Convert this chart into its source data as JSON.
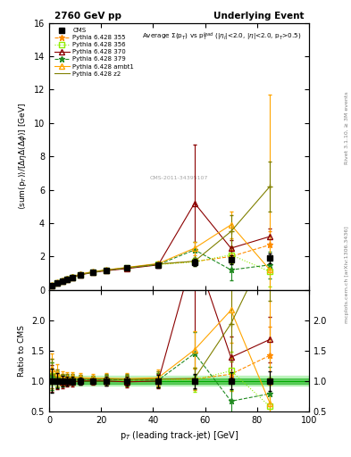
{
  "title_left": "2760 GeV pp",
  "title_right": "Underlying Event",
  "annotation": "Average Σ(p_{T}) vs p_{T}^{lead} (|η_{l}|<2.0, |η|<2.0, p_{T}>0.5)",
  "xlabel": "p_{T} (leading track-jet) [GeV]",
  "ylabel": "⟨sum(p_{T})⟩/[ΔηΔ(Δϕ)] [GeV]",
  "ylabel_ratio": "Ratio to CMS",
  "right_label": "mcplots.cern.ch [arXiv:1306.3436]",
  "rivet_label": "Rivet 3.1.10, ≥ 3M events",
  "ylim_main": [
    0,
    16
  ],
  "ylim_ratio": [
    0.5,
    2.5
  ],
  "yticks_main": [
    0,
    2,
    4,
    6,
    8,
    10,
    12,
    14,
    16
  ],
  "yticks_ratio": [
    0.5,
    1.0,
    1.5,
    2.0
  ],
  "xlim": [
    0,
    100
  ],
  "cms_x": [
    1,
    3,
    5,
    7,
    9,
    12,
    17,
    22,
    30,
    42,
    56,
    70,
    85
  ],
  "cms_y": [
    0.25,
    0.4,
    0.55,
    0.65,
    0.75,
    0.9,
    1.05,
    1.15,
    1.3,
    1.5,
    1.65,
    1.8,
    1.9
  ],
  "cms_yerr": [
    0.05,
    0.05,
    0.05,
    0.05,
    0.05,
    0.05,
    0.05,
    0.08,
    0.1,
    0.15,
    0.2,
    0.25,
    0.3
  ],
  "p355_x": [
    1,
    3,
    5,
    7,
    9,
    12,
    17,
    22,
    30,
    42,
    56,
    70,
    85
  ],
  "p355_y": [
    0.28,
    0.42,
    0.56,
    0.67,
    0.78,
    0.93,
    1.08,
    1.18,
    1.32,
    1.55,
    1.7,
    2.0,
    2.7
  ],
  "p355_yerr": [
    0.02,
    0.02,
    0.02,
    0.02,
    0.02,
    0.02,
    0.03,
    0.04,
    0.06,
    0.1,
    0.2,
    0.4,
    0.8
  ],
  "p356_x": [
    1,
    3,
    5,
    7,
    9,
    12,
    17,
    22,
    30,
    42,
    56,
    70,
    85
  ],
  "p356_y": [
    0.27,
    0.41,
    0.55,
    0.65,
    0.76,
    0.91,
    1.06,
    1.17,
    1.3,
    1.52,
    1.68,
    2.1,
    1.1
  ],
  "p356_yerr": [
    0.02,
    0.02,
    0.02,
    0.02,
    0.02,
    0.02,
    0.03,
    0.04,
    0.06,
    0.1,
    0.25,
    0.5,
    0.9
  ],
  "p370_x": [
    1,
    3,
    5,
    7,
    9,
    12,
    17,
    22,
    30,
    42,
    56,
    70,
    85
  ],
  "p370_y": [
    0.26,
    0.4,
    0.54,
    0.64,
    0.74,
    0.9,
    1.05,
    1.15,
    1.28,
    1.5,
    5.2,
    2.5,
    3.2
  ],
  "p370_yerr": [
    0.02,
    0.02,
    0.02,
    0.02,
    0.02,
    0.02,
    0.03,
    0.04,
    0.06,
    0.1,
    3.5,
    0.5,
    0.5
  ],
  "p379_x": [
    1,
    3,
    5,
    7,
    9,
    12,
    17,
    22,
    30,
    42,
    56,
    70,
    85
  ],
  "p379_y": [
    0.27,
    0.41,
    0.55,
    0.66,
    0.77,
    0.92,
    1.07,
    1.18,
    1.32,
    1.52,
    2.4,
    1.2,
    1.5
  ],
  "p379_yerr": [
    0.02,
    0.02,
    0.02,
    0.02,
    0.02,
    0.02,
    0.03,
    0.04,
    0.06,
    0.1,
    0.5,
    0.6,
    0.8
  ],
  "pambt_x": [
    1,
    3,
    5,
    7,
    9,
    12,
    17,
    22,
    30,
    42,
    56,
    70,
    85
  ],
  "pambt_y": [
    0.3,
    0.45,
    0.58,
    0.69,
    0.8,
    0.95,
    1.1,
    1.2,
    1.35,
    1.58,
    2.5,
    3.9,
    1.2
  ],
  "pambt_yerr": [
    0.02,
    0.02,
    0.02,
    0.02,
    0.02,
    0.03,
    0.04,
    0.05,
    0.07,
    0.12,
    0.4,
    0.8,
    10.5
  ],
  "pz2_x": [
    1,
    3,
    5,
    7,
    9,
    12,
    17,
    22,
    30,
    42,
    56,
    70,
    85
  ],
  "pz2_y": [
    0.28,
    0.42,
    0.56,
    0.67,
    0.78,
    0.93,
    1.08,
    1.19,
    1.33,
    1.55,
    1.72,
    3.5,
    6.2
  ],
  "pz2_yerr": [
    0.02,
    0.02,
    0.02,
    0.02,
    0.02,
    0.02,
    0.03,
    0.04,
    0.06,
    0.1,
    0.2,
    1.0,
    1.5
  ],
  "cms_color": "#000000",
  "p355_color": "#FF8C00",
  "p356_color": "#90EE00",
  "p370_color": "#8B0000",
  "p379_color": "#228B22",
  "pambt_color": "#FFA500",
  "pz2_color": "#808000",
  "band_color": "#90EE90",
  "band_inner_color": "#00AA00",
  "watermark": "CMS-2011-34395107"
}
